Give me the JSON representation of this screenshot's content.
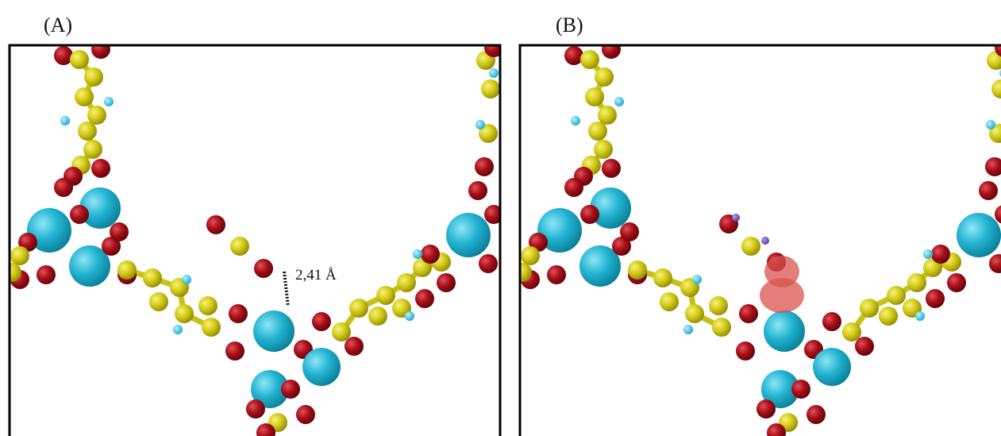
{
  "panels": [
    {
      "label": "(A)",
      "annotation": "2,41 Å"
    },
    {
      "label": "(B)"
    }
  ]
}
